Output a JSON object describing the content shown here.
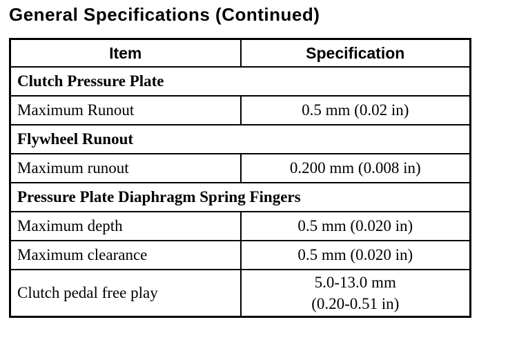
{
  "page_title": "General Specifications (Continued)",
  "table": {
    "columns": [
      "Item",
      "Specification"
    ],
    "rows": [
      {
        "type": "section",
        "label": "Clutch Pressure Plate"
      },
      {
        "type": "data",
        "item": "Maximum Runout",
        "spec": [
          "0.5 mm (0.02 in)"
        ]
      },
      {
        "type": "section",
        "label": "Flywheel Runout"
      },
      {
        "type": "data",
        "item": "Maximum runout",
        "spec": [
          "0.200 mm (0.008 in)"
        ]
      },
      {
        "type": "section",
        "label": "Pressure Plate Diaphragm Spring Fingers"
      },
      {
        "type": "data",
        "item": "Maximum depth",
        "spec": [
          "0.5 mm (0.020 in)"
        ]
      },
      {
        "type": "data",
        "item": "Maximum clearance",
        "spec": [
          "0.5 mm (0.020 in)"
        ]
      },
      {
        "type": "data",
        "item": "Clutch pedal free play",
        "spec": [
          "5.0-13.0 mm",
          "(0.20-0.51 in)"
        ]
      }
    ]
  }
}
